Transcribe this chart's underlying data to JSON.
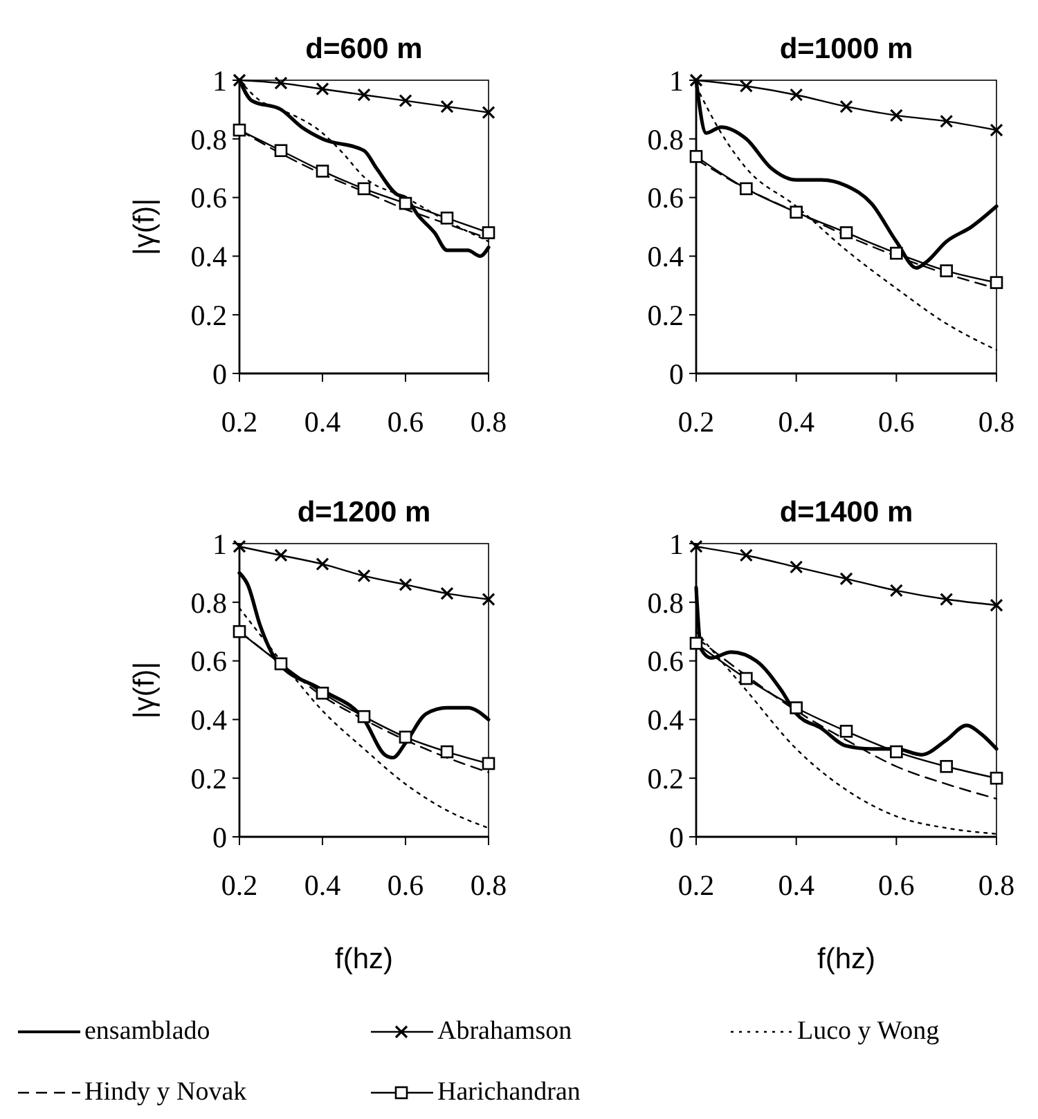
{
  "chart_data": [
    {
      "type": "line",
      "title": "d=600 m",
      "ylabel": "|γ(f)|",
      "xlim": [
        0.2,
        0.8
      ],
      "xticks": [
        0.2,
        0.4,
        0.6,
        0.8
      ],
      "ylim": [
        0,
        1
      ],
      "yticks": [
        0,
        0.2,
        0.4,
        0.6,
        0.8,
        1
      ],
      "grid": false,
      "legend": "bottom",
      "series": [
        {
          "name": "ensamblado",
          "color": "#000000",
          "line_style": "solid",
          "marker": "none",
          "x": [
            0.2,
            0.23,
            0.3,
            0.35,
            0.4,
            0.5,
            0.53,
            0.58,
            0.6,
            0.63,
            0.67,
            0.7,
            0.75,
            0.78,
            0.8
          ],
          "values": [
            1.0,
            0.93,
            0.9,
            0.84,
            0.8,
            0.76,
            0.7,
            0.61,
            0.6,
            0.54,
            0.48,
            0.42,
            0.42,
            0.4,
            0.43
          ]
        },
        {
          "name": "Abrahamson",
          "color": "#000000",
          "line_style": "solid",
          "marker": "cross",
          "x": [
            0.2,
            0.3,
            0.4,
            0.5,
            0.6,
            0.7,
            0.8
          ],
          "values": [
            1.0,
            0.99,
            0.97,
            0.95,
            0.93,
            0.91,
            0.89
          ]
        },
        {
          "name": "Luco y Wong",
          "color": "#000000",
          "line_style": "dotted",
          "marker": "none",
          "x": [
            0.2,
            0.25,
            0.3,
            0.4,
            0.45,
            0.5,
            0.6,
            0.7,
            0.8
          ],
          "values": [
            1.0,
            0.93,
            0.9,
            0.82,
            0.75,
            0.67,
            0.6,
            0.52,
            0.45
          ]
        },
        {
          "name": "Hindy y Novak",
          "color": "#000000",
          "line_style": "dashed",
          "marker": "none",
          "x": [
            0.2,
            0.3,
            0.4,
            0.5,
            0.6,
            0.7,
            0.8
          ],
          "values": [
            0.83,
            0.75,
            0.68,
            0.62,
            0.56,
            0.51,
            0.46
          ]
        },
        {
          "name": "Harichandran",
          "color": "#000000",
          "line_style": "solid",
          "marker": "square",
          "x": [
            0.2,
            0.3,
            0.4,
            0.5,
            0.6,
            0.7,
            0.8
          ],
          "values": [
            0.83,
            0.76,
            0.69,
            0.63,
            0.58,
            0.53,
            0.48
          ]
        }
      ]
    },
    {
      "type": "line",
      "title": "d=1000 m",
      "xlim": [
        0.2,
        0.8
      ],
      "xticks": [
        0.2,
        0.4,
        0.6,
        0.8
      ],
      "ylim": [
        0,
        1
      ],
      "yticks": [
        0,
        0.2,
        0.4,
        0.6,
        0.8,
        1
      ],
      "grid": false,
      "series": [
        {
          "color": "#000000",
          "line_style": "solid",
          "marker": "none",
          "x": [
            0.2,
            0.22,
            0.25,
            0.3,
            0.35,
            0.4,
            0.45,
            0.5,
            0.55,
            0.6,
            0.64,
            0.66,
            0.7,
            0.75,
            0.8
          ],
          "values": [
            1.0,
            0.82,
            0.84,
            0.8,
            0.7,
            0.66,
            0.66,
            0.64,
            0.58,
            0.45,
            0.36,
            0.38,
            0.45,
            0.5,
            0.57
          ]
        },
        {
          "color": "#000000",
          "line_style": "solid",
          "marker": "cross",
          "x": [
            0.2,
            0.3,
            0.4,
            0.5,
            0.6,
            0.7,
            0.8
          ],
          "values": [
            1.0,
            0.98,
            0.95,
            0.91,
            0.88,
            0.86,
            0.83
          ]
        },
        {
          "color": "#000000",
          "line_style": "dotted",
          "marker": "none",
          "x": [
            0.2,
            0.25,
            0.3,
            0.4,
            0.5,
            0.6,
            0.7,
            0.8
          ],
          "values": [
            0.98,
            0.82,
            0.7,
            0.57,
            0.42,
            0.29,
            0.17,
            0.08
          ]
        },
        {
          "color": "#000000",
          "line_style": "dashed",
          "marker": "none",
          "x": [
            0.2,
            0.3,
            0.4,
            0.5,
            0.6,
            0.7,
            0.8
          ],
          "values": [
            0.73,
            0.63,
            0.55,
            0.47,
            0.4,
            0.34,
            0.29
          ]
        },
        {
          "color": "#000000",
          "line_style": "solid",
          "marker": "square",
          "x": [
            0.2,
            0.3,
            0.4,
            0.5,
            0.6,
            0.7,
            0.8
          ],
          "values": [
            0.74,
            0.63,
            0.55,
            0.48,
            0.41,
            0.35,
            0.31
          ]
        }
      ]
    },
    {
      "type": "line",
      "title": "d=1200 m",
      "xlabel": "f(hz)",
      "ylabel": "|γ(f)|",
      "xlim": [
        0.2,
        0.8
      ],
      "xticks": [
        0.2,
        0.4,
        0.6,
        0.8
      ],
      "ylim": [
        0,
        1
      ],
      "yticks": [
        0,
        0.2,
        0.4,
        0.6,
        0.8,
        1
      ],
      "grid": false,
      "series": [
        {
          "color": "#000000",
          "line_style": "solid",
          "marker": "none",
          "x": [
            0.2,
            0.22,
            0.25,
            0.29,
            0.4,
            0.5,
            0.55,
            0.57,
            0.6,
            0.65,
            0.7,
            0.75,
            0.8
          ],
          "values": [
            0.9,
            0.86,
            0.72,
            0.6,
            0.5,
            0.4,
            0.28,
            0.27,
            0.32,
            0.42,
            0.44,
            0.44,
            0.4
          ]
        },
        {
          "color": "#000000",
          "line_style": "solid",
          "marker": "cross",
          "x": [
            0.2,
            0.3,
            0.4,
            0.5,
            0.6,
            0.7,
            0.8
          ],
          "values": [
            0.99,
            0.96,
            0.93,
            0.89,
            0.86,
            0.83,
            0.81
          ]
        },
        {
          "color": "#000000",
          "line_style": "dotted",
          "marker": "none",
          "x": [
            0.2,
            0.3,
            0.4,
            0.5,
            0.6,
            0.7,
            0.8
          ],
          "values": [
            0.78,
            0.6,
            0.43,
            0.3,
            0.18,
            0.09,
            0.03
          ]
        },
        {
          "color": "#000000",
          "line_style": "dashed",
          "marker": "none",
          "x": [
            0.2,
            0.3,
            0.4,
            0.5,
            0.6,
            0.7,
            0.8
          ],
          "values": [
            0.7,
            0.59,
            0.48,
            0.4,
            0.33,
            0.27,
            0.22
          ]
        },
        {
          "color": "#000000",
          "line_style": "solid",
          "marker": "square",
          "x": [
            0.2,
            0.3,
            0.4,
            0.5,
            0.6,
            0.7,
            0.8
          ],
          "values": [
            0.7,
            0.59,
            0.49,
            0.41,
            0.34,
            0.29,
            0.25
          ]
        }
      ]
    },
    {
      "type": "line",
      "title": "d=1400 m",
      "xlabel": "f(hz)",
      "xlim": [
        0.2,
        0.8
      ],
      "xticks": [
        0.2,
        0.4,
        0.6,
        0.8
      ],
      "ylim": [
        0,
        1
      ],
      "yticks": [
        0,
        0.2,
        0.4,
        0.6,
        0.8,
        1
      ],
      "grid": false,
      "series": [
        {
          "color": "#000000",
          "line_style": "solid",
          "marker": "none",
          "x": [
            0.2,
            0.21,
            0.23,
            0.27,
            0.32,
            0.37,
            0.4,
            0.45,
            0.5,
            0.55,
            0.6,
            0.65,
            0.7,
            0.74,
            0.77,
            0.8
          ],
          "values": [
            0.85,
            0.64,
            0.61,
            0.63,
            0.6,
            0.5,
            0.42,
            0.37,
            0.31,
            0.3,
            0.3,
            0.28,
            0.33,
            0.38,
            0.35,
            0.3
          ]
        },
        {
          "color": "#000000",
          "line_style": "solid",
          "marker": "cross",
          "x": [
            0.2,
            0.3,
            0.4,
            0.5,
            0.6,
            0.7,
            0.8
          ],
          "values": [
            0.99,
            0.96,
            0.92,
            0.88,
            0.84,
            0.81,
            0.79
          ]
        },
        {
          "color": "#000000",
          "line_style": "dotted",
          "marker": "none",
          "x": [
            0.2,
            0.3,
            0.4,
            0.5,
            0.6,
            0.7,
            0.8
          ],
          "values": [
            0.7,
            0.5,
            0.3,
            0.16,
            0.07,
            0.03,
            0.01
          ]
        },
        {
          "color": "#000000",
          "line_style": "dashed",
          "marker": "none",
          "x": [
            0.2,
            0.3,
            0.4,
            0.5,
            0.6,
            0.7,
            0.8
          ],
          "values": [
            0.68,
            0.55,
            0.43,
            0.33,
            0.24,
            0.18,
            0.13
          ]
        },
        {
          "color": "#000000",
          "line_style": "solid",
          "marker": "square",
          "x": [
            0.2,
            0.3,
            0.4,
            0.5,
            0.6,
            0.7,
            0.8
          ],
          "values": [
            0.66,
            0.54,
            0.44,
            0.36,
            0.29,
            0.24,
            0.2
          ]
        }
      ]
    }
  ]
}
